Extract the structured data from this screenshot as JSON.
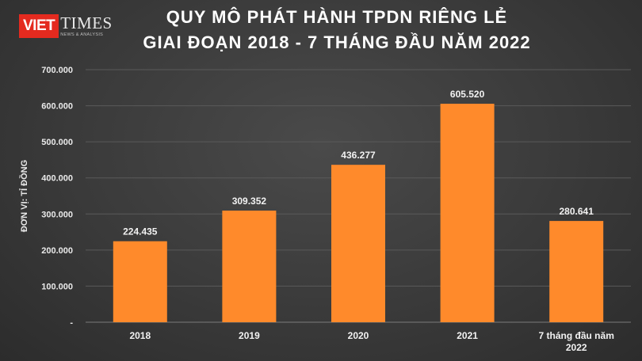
{
  "logo": {
    "brand": "VIET",
    "brand2": "TIMES",
    "tagline": "NEWS & ANALYSIS"
  },
  "chart_data": {
    "type": "bar",
    "title_line1": "QUY MÔ PHÁT HÀNH TPDN RIÊNG LẺ",
    "title_line2": "GIAI ĐOẠN 2018 - 7 THÁNG ĐẦU NĂM 2022",
    "ylabel": "ĐƠN VỊ: TỈ ĐỒNG",
    "xlabel": "",
    "categories": [
      "2018",
      "2019",
      "2020",
      "2021",
      "7 tháng đầu năm 2022"
    ],
    "category_lines": [
      [
        "2018"
      ],
      [
        "2019"
      ],
      [
        "2020"
      ],
      [
        "2021"
      ],
      [
        "7 tháng đầu năm",
        "2022"
      ]
    ],
    "values": [
      224435,
      309352,
      436277,
      605520,
      280641
    ],
    "data_labels": [
      "224.435",
      "309.352",
      "436.277",
      "605.520",
      "280.641"
    ],
    "ylim": [
      0,
      700000
    ],
    "yticks": [
      0,
      100000,
      200000,
      300000,
      400000,
      500000,
      600000,
      700000
    ],
    "ytick_labels": [
      "-",
      "100.000",
      "200.000",
      "300.000",
      "400.000",
      "500.000",
      "600.000",
      "700.000"
    ],
    "bar_color": "#ff8a2b",
    "grid": true,
    "legend": "none"
  }
}
